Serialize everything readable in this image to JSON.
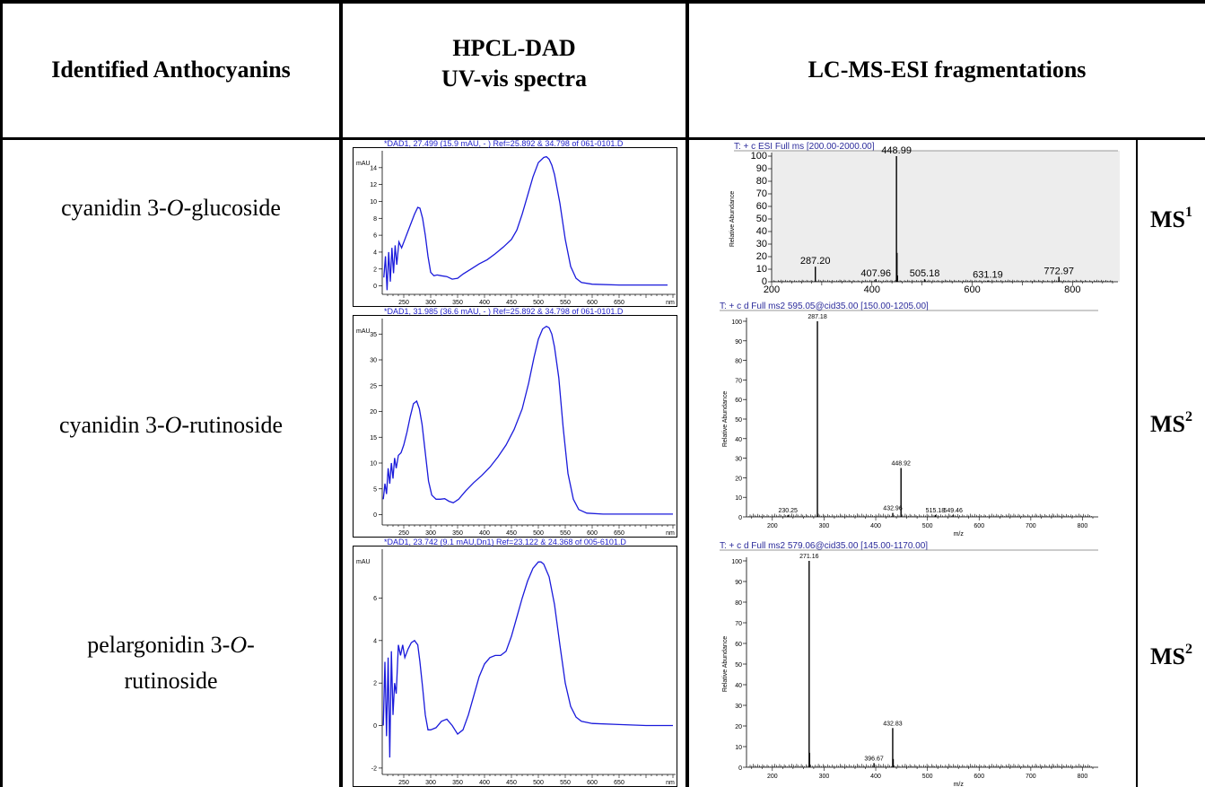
{
  "headers": {
    "col1": "Identified Anthocyanins",
    "col2_line1": "HPCL-DAD",
    "col2_line2": "UV-vis spectra",
    "col3": "LC-MS-ESI fragmentations"
  },
  "rows": [
    {
      "compound_prefix": "cyanidin 3-",
      "compound_italic": "O",
      "compound_suffix": "-glucoside",
      "ms_level_base": "MS",
      "ms_level_sup": "1"
    },
    {
      "compound_prefix": "cyanidin 3-",
      "compound_italic": "O",
      "compound_suffix": "-rutinoside",
      "ms_level_base": "MS",
      "ms_level_sup": "2"
    },
    {
      "compound_prefix": "pelargonidin 3-",
      "compound_italic": "O",
      "compound_suffix": "-",
      "compound_line2": "rutinoside",
      "ms_level_base": "MS",
      "ms_level_sup": "2"
    }
  ],
  "chart_data": [
    {
      "id": "uv1",
      "type": "line",
      "title": "*DAD1, 27.499 (15.9 mAU, - ) Ref=25.892 & 34.798 of 061-0101.D",
      "ylabel": "mAU",
      "xunit": "nm",
      "xlim": [
        210,
        755
      ],
      "ylim": [
        -1,
        16
      ],
      "yticks": [
        0,
        2,
        4,
        6,
        8,
        10,
        12,
        14
      ],
      "xticks": [
        250,
        300,
        350,
        400,
        450,
        500,
        550,
        600,
        650
      ],
      "color": "#1a1adb",
      "x": [
        213,
        216,
        219,
        222,
        225,
        228,
        231,
        234,
        237,
        241,
        246,
        252,
        258,
        264,
        270,
        276,
        280,
        285,
        290,
        295,
        300,
        306,
        312,
        320,
        330,
        340,
        350,
        360,
        375,
        390,
        405,
        420,
        435,
        450,
        460,
        470,
        480,
        490,
        500,
        510,
        515,
        520,
        525,
        530,
        540,
        550,
        560,
        570,
        580,
        600,
        650,
        700,
        740
      ],
      "y": [
        1,
        3.5,
        -0.5,
        4,
        0.5,
        4.5,
        1.5,
        4.8,
        2.5,
        5.2,
        4.5,
        5.5,
        6.5,
        7.5,
        8.5,
        9.3,
        9.2,
        8,
        6,
        3.5,
        1.6,
        1.2,
        1.3,
        1.2,
        1.1,
        0.8,
        0.9,
        1.4,
        2.0,
        2.6,
        3.1,
        3.8,
        4.6,
        5.5,
        6.6,
        8.5,
        10.7,
        12.9,
        14.6,
        15.2,
        15.3,
        15.0,
        14.3,
        13.2,
        9.8,
        5.5,
        2.3,
        0.9,
        0.4,
        0.2,
        0.1,
        0.1,
        0.1
      ]
    },
    {
      "id": "uv2",
      "type": "line",
      "title": "*DAD1, 31.985 (36.6 mAU, - ) Ref=25.892 & 34.798 of 061-0101.D",
      "ylabel": "mAU",
      "xunit": "nm",
      "xlim": [
        210,
        755
      ],
      "ylim": [
        -2,
        38
      ],
      "yticks": [
        0,
        5,
        10,
        15,
        20,
        25,
        30,
        35
      ],
      "xticks": [
        250,
        300,
        350,
        400,
        450,
        500,
        550,
        600,
        650
      ],
      "color": "#1a1adb",
      "x": [
        212,
        215,
        218,
        221,
        224,
        227,
        230,
        233,
        236,
        240,
        245,
        250,
        256,
        262,
        268,
        274,
        279,
        284,
        290,
        296,
        302,
        310,
        318,
        326,
        334,
        342,
        352,
        365,
        380,
        395,
        410,
        425,
        440,
        455,
        470,
        482,
        492,
        500,
        508,
        515,
        520,
        525,
        530,
        538,
        546,
        555,
        565,
        575,
        590,
        620,
        680,
        750
      ],
      "y": [
        3,
        6,
        4,
        9,
        6,
        10,
        7,
        11,
        9,
        11.5,
        12,
        13.5,
        16,
        19,
        21.5,
        22,
        20.5,
        17.5,
        12,
        6.5,
        3.8,
        3,
        3,
        3.1,
        2.6,
        2.3,
        3.0,
        4.6,
        6.2,
        7.6,
        9.2,
        11.2,
        13.5,
        16.5,
        20.5,
        25.5,
        30.5,
        34,
        36,
        36.5,
        36.2,
        35,
        32.5,
        26.5,
        17,
        8,
        3,
        1,
        0.3,
        0.1,
        0.1,
        0.1
      ]
    },
    {
      "id": "uv3",
      "type": "line",
      "title": "*DAD1, 23.742 (9.1 mAU,Dn1) Ref=23.122 & 24.368 of 005-6101.D",
      "ylabel": "mAU",
      "xunit": "nm",
      "xlim": [
        210,
        755
      ],
      "ylim": [
        -2.3,
        8.3
      ],
      "yticks": [
        -2,
        0,
        2,
        4,
        6
      ],
      "xticks": [
        250,
        300,
        350,
        400,
        450,
        500,
        550,
        600,
        650
      ],
      "color": "#1a1adb",
      "x": [
        212,
        215,
        218,
        221,
        224,
        227,
        230,
        233,
        236,
        240,
        244,
        248,
        252,
        258,
        264,
        270,
        276,
        280,
        285,
        290,
        295,
        300,
        310,
        320,
        330,
        340,
        350,
        360,
        370,
        380,
        390,
        400,
        410,
        420,
        430,
        440,
        450,
        460,
        470,
        480,
        490,
        500,
        505,
        510,
        520,
        530,
        540,
        550,
        560,
        570,
        580,
        600,
        650,
        700,
        750
      ],
      "y": [
        0,
        3,
        -0.5,
        3.2,
        -1.5,
        3.5,
        0.5,
        2,
        1.5,
        3.8,
        3.3,
        3.8,
        3.2,
        3.6,
        3.9,
        4.0,
        3.8,
        3.0,
        1.8,
        0.5,
        -0.2,
        -0.2,
        -0.1,
        0.2,
        0.3,
        0.0,
        -0.4,
        -0.2,
        0.5,
        1.4,
        2.3,
        2.9,
        3.2,
        3.3,
        3.3,
        3.5,
        4.2,
        5.1,
        6.0,
        6.8,
        7.4,
        7.7,
        7.7,
        7.6,
        7.0,
        5.7,
        3.8,
        2.0,
        0.9,
        0.4,
        0.2,
        0.1,
        0.05,
        0.0,
        0.0
      ]
    },
    {
      "id": "ms1",
      "type": "bar",
      "title": "T: + c ESI Full ms [200.00-2000.00]",
      "ylabel": "Relative Abundance",
      "xlim": [
        200,
        880
      ],
      "ylim": [
        0,
        100
      ],
      "xticks": [
        200,
        400,
        600,
        800
      ],
      "yticks": [
        0,
        10,
        20,
        30,
        40,
        50,
        60,
        70,
        80,
        90,
        100
      ],
      "peaks": [
        {
          "x": 287.2,
          "y": 12,
          "label": "287.20"
        },
        {
          "x": 407.96,
          "y": 2,
          "label": "407.96"
        },
        {
          "x": 448.99,
          "y": 100,
          "label": "448.99"
        },
        {
          "x": 450.0,
          "y": 23
        },
        {
          "x": 451.0,
          "y": 5
        },
        {
          "x": 505.18,
          "y": 2,
          "label": "505.18"
        },
        {
          "x": 631.19,
          "y": 1,
          "label": "631.19"
        },
        {
          "x": 772.97,
          "y": 4,
          "label": "772.97"
        }
      ]
    },
    {
      "id": "ms2a",
      "type": "bar",
      "title": "T: + c d Full ms2 595.05@cid35.00 [150.00-1205.00]",
      "ylabel": "Relative Abundance",
      "xlabel": "m/z",
      "xlim": [
        150,
        820
      ],
      "ylim": [
        0,
        100
      ],
      "xticks": [
        200,
        300,
        400,
        500,
        600,
        700,
        800
      ],
      "yticks": [
        0,
        10,
        20,
        30,
        40,
        50,
        60,
        70,
        80,
        90,
        100
      ],
      "peaks": [
        {
          "x": 230.25,
          "y": 1,
          "label": "230.25"
        },
        {
          "x": 287.18,
          "y": 100,
          "label": "287.18"
        },
        {
          "x": 432.96,
          "y": 2,
          "label": "432.96"
        },
        {
          "x": 448.92,
          "y": 25,
          "label": "448.92"
        },
        {
          "x": 515.18,
          "y": 1,
          "label": "515.18"
        },
        {
          "x": 549.46,
          "y": 1,
          "label": "549.46"
        }
      ]
    },
    {
      "id": "ms2b",
      "type": "bar",
      "title": "T: + c d Full ms2 579.06@cid35.00 [145.00-1170.00]",
      "ylabel": "Relative Abundance",
      "xlabel": "m/z",
      "xlim": [
        150,
        820
      ],
      "ylim": [
        0,
        100
      ],
      "xticks": [
        200,
        300,
        400,
        500,
        600,
        700,
        800
      ],
      "yticks": [
        0,
        10,
        20,
        30,
        40,
        50,
        60,
        70,
        80,
        90,
        100
      ],
      "peaks": [
        {
          "x": 271.16,
          "y": 100,
          "label": "271.16"
        },
        {
          "x": 272.0,
          "y": 7
        },
        {
          "x": 396.67,
          "y": 2,
          "label": "396.67"
        },
        {
          "x": 432.83,
          "y": 19,
          "label": "432.83"
        },
        {
          "x": 433.8,
          "y": 4
        }
      ]
    }
  ]
}
